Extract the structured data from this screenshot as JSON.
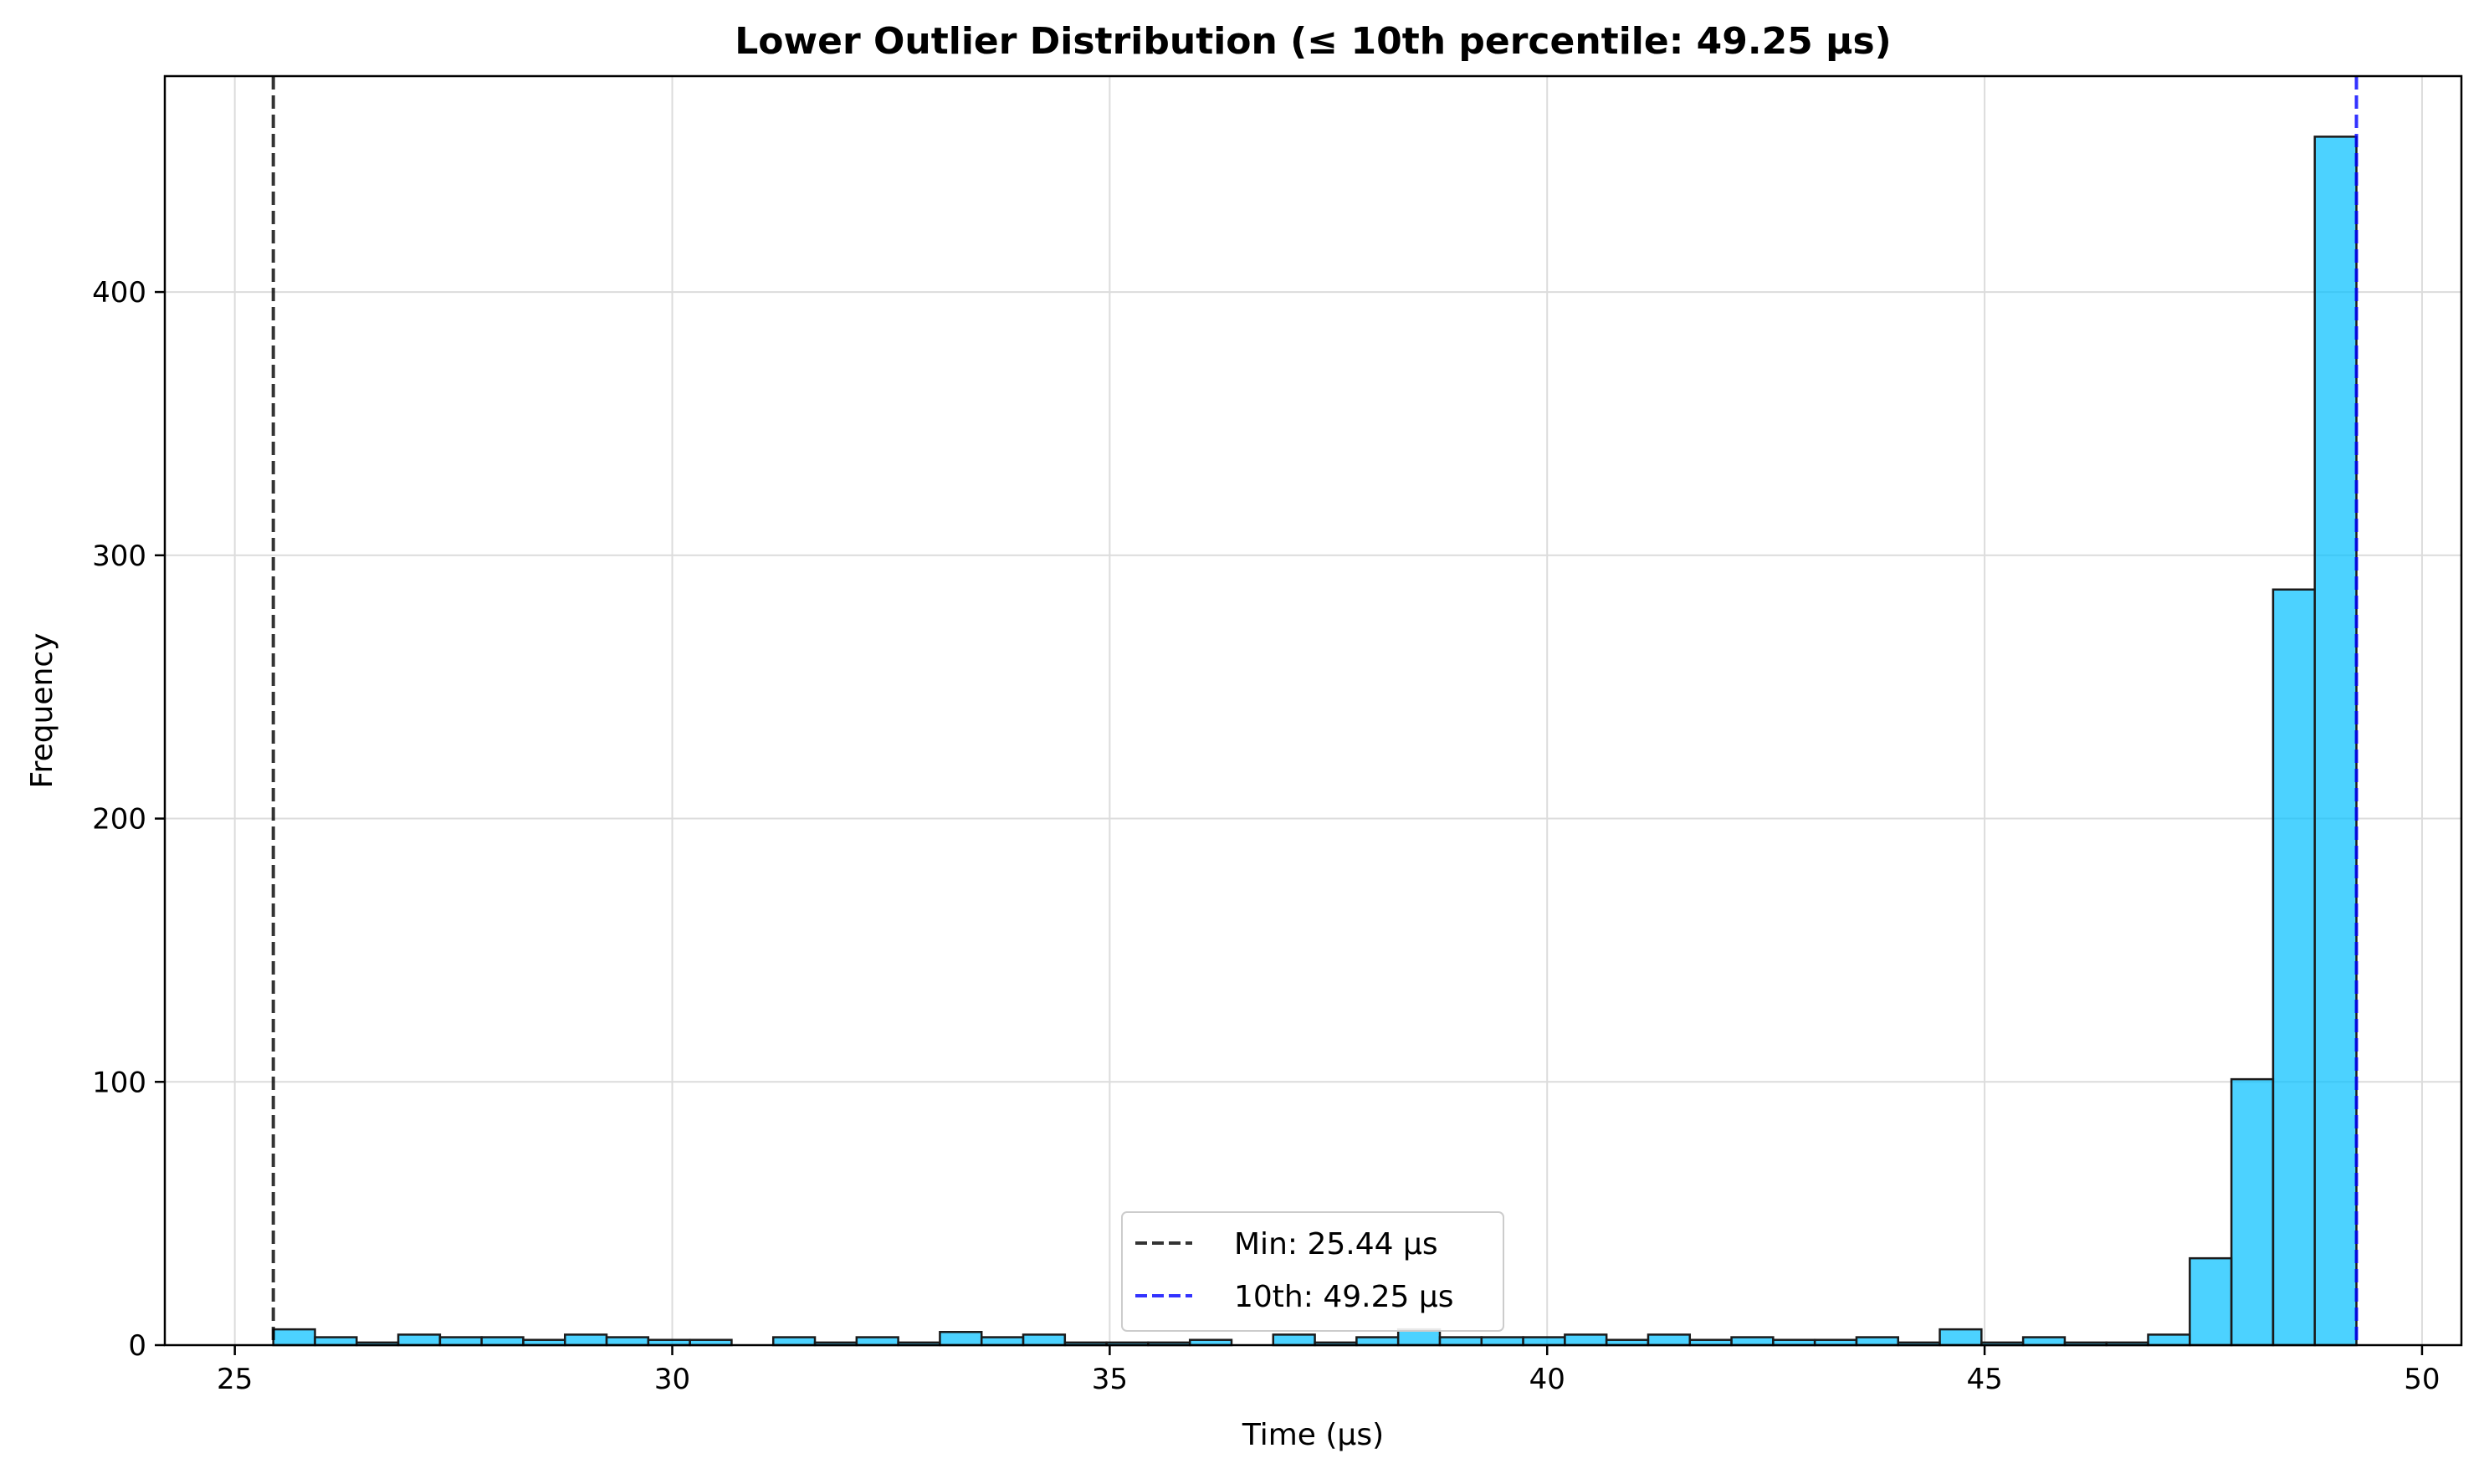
{
  "chart_data": {
    "type": "bar",
    "title": "Lower Outlier Distribution (≤ 10th percentile: 49.25 µs)",
    "xlabel": "Time (µs)",
    "ylabel": "Frequency",
    "xlim": [
      24.2,
      50.45
    ],
    "ylim": [
      0,
      482
    ],
    "xticks": [
      25,
      30,
      35,
      40,
      45,
      50
    ],
    "yticks": [
      0,
      100,
      200,
      300,
      400
    ],
    "grid": true,
    "bin_range": [
      25.44,
      49.25
    ],
    "bin_count": 50,
    "values": [
      6,
      3,
      1,
      4,
      3,
      3,
      2,
      4,
      3,
      2,
      2,
      0,
      3,
      1,
      3,
      1,
      5,
      3,
      4,
      1,
      1,
      1,
      2,
      0,
      4,
      1,
      3,
      6,
      3,
      3,
      3,
      4,
      2,
      4,
      2,
      3,
      2,
      2,
      3,
      1,
      6,
      1,
      3,
      1,
      1,
      4,
      33,
      101,
      287,
      459
    ],
    "bar_color": "#00BFFF",
    "bar_edge_color": "#1a1a1a",
    "vlines": [
      {
        "x": 25.44,
        "label": "Min: 25.44 µs",
        "color": "#000000",
        "style": "dashed"
      },
      {
        "x": 49.25,
        "label": "10th: 49.25 µs",
        "color": "#0000FF",
        "style": "dashed"
      }
    ],
    "legend_position": "lower center"
  }
}
